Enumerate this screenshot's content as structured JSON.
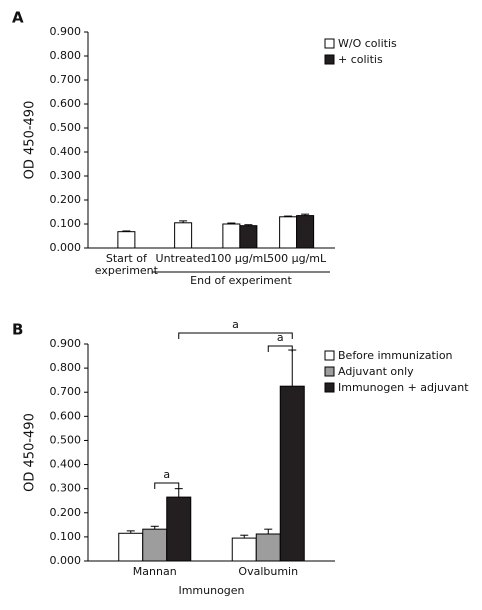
{
  "chart_data": [
    {
      "type": "bar",
      "panel": "A",
      "ylabel": "OD 450-490",
      "categories": [
        "Start of experiment",
        "Untreated",
        "100 µg/mL",
        "500 µg/mL"
      ],
      "group_label": "End of experiment",
      "series": [
        {
          "name": "W/O colitis",
          "color": "#ffffff",
          "values": [
            0.068,
            0.105,
            0.1,
            0.13
          ],
          "errors": [
            0.003,
            0.008,
            0.004,
            0.003
          ]
        },
        {
          "name": "+ colitis",
          "color": "#231f20",
          "values": [
            null,
            null,
            0.093,
            0.135
          ],
          "errors": [
            null,
            null,
            0.004,
            0.006
          ]
        }
      ],
      "ylim": [
        0,
        0.9
      ],
      "yticks": [
        {
          "value": 0,
          "label": "0.000"
        },
        {
          "value": 0.1,
          "label": "0.100"
        },
        {
          "value": 0.2,
          "label": "0.200"
        },
        {
          "value": 0.3,
          "label": "0.300"
        },
        {
          "value": 0.4,
          "label": "0.400"
        },
        {
          "value": 0.5,
          "label": "0.500"
        },
        {
          "value": 0.6,
          "label": "0.600"
        },
        {
          "value": 0.7,
          "label": "0.700"
        },
        {
          "value": 0.8,
          "label": "0.800"
        },
        {
          "value": 0.9,
          "label": "0.900"
        }
      ],
      "legend": "upper right"
    },
    {
      "type": "bar",
      "panel": "B",
      "ylabel": "OD 450-490",
      "xlabel": "Immunogen",
      "categories": [
        "Mannan",
        "Ovalbumin"
      ],
      "series": [
        {
          "name": "Before immunization",
          "color": "#ffffff",
          "values": [
            0.115,
            0.095
          ],
          "errors": [
            0.01,
            0.012
          ]
        },
        {
          "name": "Adjuvant only",
          "color": "#9d9d9d",
          "values": [
            0.132,
            0.112
          ],
          "errors": [
            0.012,
            0.02
          ]
        },
        {
          "name": "Immunogen + adjuvant",
          "color": "#231f20",
          "values": [
            0.265,
            0.725
          ],
          "errors": [
            0.035,
            0.15
          ]
        }
      ],
      "annotations": [
        "a",
        "a",
        "a"
      ],
      "ylim": [
        0,
        0.9
      ],
      "yticks": [
        {
          "value": 0,
          "label": "0.000"
        },
        {
          "value": 0.1,
          "label": "0.100"
        },
        {
          "value": 0.2,
          "label": "0.200"
        },
        {
          "value": 0.3,
          "label": "0.300"
        },
        {
          "value": 0.4,
          "label": "0.400"
        },
        {
          "value": 0.5,
          "label": "0.500"
        },
        {
          "value": 0.6,
          "label": "0.600"
        },
        {
          "value": 0.7,
          "label": "0.700"
        },
        {
          "value": 0.8,
          "label": "0.800"
        },
        {
          "value": 0.9,
          "label": "0.900"
        }
      ],
      "legend": "upper right"
    }
  ]
}
